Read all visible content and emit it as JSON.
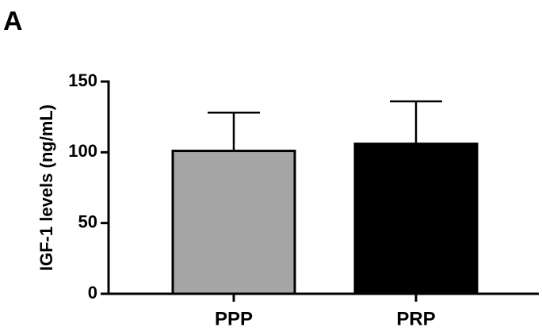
{
  "chart_data": {
    "type": "bar",
    "panel_label": "A",
    "ylabel": "IGF-1 levels (ng/mL)",
    "categories": [
      "PPP",
      "PRP"
    ],
    "values": [
      101,
      106
    ],
    "errors": [
      27,
      30
    ],
    "colors": [
      "#a6a6a6",
      "#000000"
    ],
    "ylim": [
      0,
      150
    ],
    "yticks": [
      0,
      50,
      100,
      150
    ],
    "grid": false
  }
}
